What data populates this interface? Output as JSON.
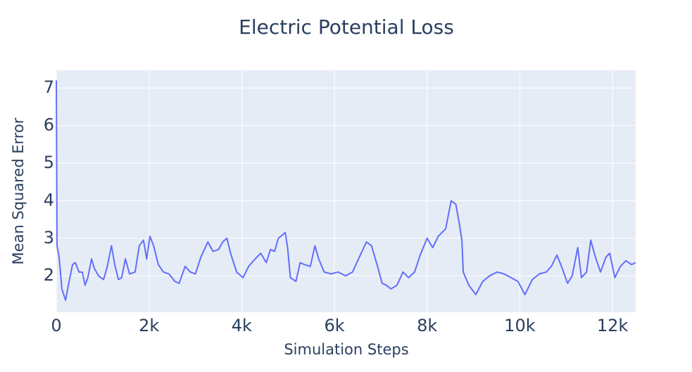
{
  "chart_data": {
    "type": "line",
    "title": "Electric Potential Loss",
    "x_label": "Simulation Steps",
    "y_label": "Mean Squared Error",
    "grid": true,
    "xlim": [
      0,
      12500
    ],
    "ylim": [
      1.03,
      7.47
    ],
    "xticks": [
      0,
      {
        "value": 2000,
        "label": "2k"
      },
      {
        "value": 4000,
        "label": "4k"
      },
      {
        "value": 6000,
        "label": "6k"
      },
      {
        "value": 8000,
        "label": "8k"
      },
      {
        "value": 10000,
        "label": "10k"
      },
      {
        "value": 12000,
        "label": "12k"
      }
    ],
    "yticks": [
      2,
      3,
      4,
      5,
      6,
      7
    ],
    "series": [
      {
        "color": "#636efa",
        "x": [
          0,
          15,
          60,
          120,
          200,
          260,
          350,
          410,
          490,
          560,
          620,
          680,
          760,
          820,
          910,
          1020,
          1100,
          1190,
          1260,
          1340,
          1410,
          1490,
          1580,
          1700,
          1790,
          1880,
          1950,
          2020,
          2100,
          2200,
          2310,
          2430,
          2560,
          2650,
          2780,
          2890,
          3000,
          3120,
          3270,
          3380,
          3500,
          3590,
          3680,
          3760,
          3890,
          4030,
          4150,
          4290,
          4410,
          4530,
          4620,
          4710,
          4790,
          4940,
          4990,
          5050,
          5170,
          5260,
          5350,
          5480,
          5580,
          5660,
          5780,
          5930,
          6080,
          6240,
          6390,
          6540,
          6690,
          6800,
          6920,
          7030,
          7120,
          7220,
          7350,
          7480,
          7600,
          7730,
          7850,
          8000,
          8120,
          8240,
          8400,
          8520,
          8620,
          8700,
          8750,
          8780,
          8900,
          9050,
          9200,
          9350,
          9510,
          9660,
          9810,
          9960,
          10110,
          10270,
          10420,
          10570,
          10680,
          10800,
          10900,
          11030,
          11130,
          11250,
          11330,
          11440,
          11530,
          11630,
          11740,
          11860,
          11940,
          12050,
          12170,
          12290,
          12410,
          12500
        ],
        "values": [
          7.2,
          2.8,
          2.5,
          1.65,
          1.35,
          1.75,
          2.3,
          2.35,
          2.1,
          2.1,
          1.75,
          1.95,
          2.45,
          2.2,
          2.0,
          1.9,
          2.25,
          2.8,
          2.3,
          1.9,
          1.95,
          2.45,
          2.05,
          2.1,
          2.8,
          2.95,
          2.45,
          3.05,
          2.8,
          2.3,
          2.1,
          2.05,
          1.85,
          1.8,
          2.25,
          2.1,
          2.05,
          2.5,
          2.9,
          2.65,
          2.7,
          2.9,
          3.0,
          2.6,
          2.1,
          1.95,
          2.25,
          2.45,
          2.6,
          2.35,
          2.7,
          2.65,
          3.0,
          3.15,
          2.75,
          1.95,
          1.85,
          2.35,
          2.3,
          2.25,
          2.8,
          2.45,
          2.1,
          2.05,
          2.1,
          2.0,
          2.1,
          2.5,
          2.9,
          2.8,
          2.3,
          1.8,
          1.75,
          1.65,
          1.75,
          2.1,
          1.95,
          2.1,
          2.55,
          3.0,
          2.75,
          3.05,
          3.25,
          4.0,
          3.9,
          3.35,
          2.95,
          2.1,
          1.75,
          1.5,
          1.85,
          2.0,
          2.1,
          2.05,
          1.95,
          1.85,
          1.5,
          1.9,
          2.05,
          2.1,
          2.25,
          2.55,
          2.25,
          1.8,
          2.0,
          2.75,
          1.95,
          2.1,
          2.95,
          2.5,
          2.1,
          2.5,
          2.6,
          1.95,
          2.25,
          2.4,
          2.3,
          2.35
        ]
      }
    ]
  }
}
